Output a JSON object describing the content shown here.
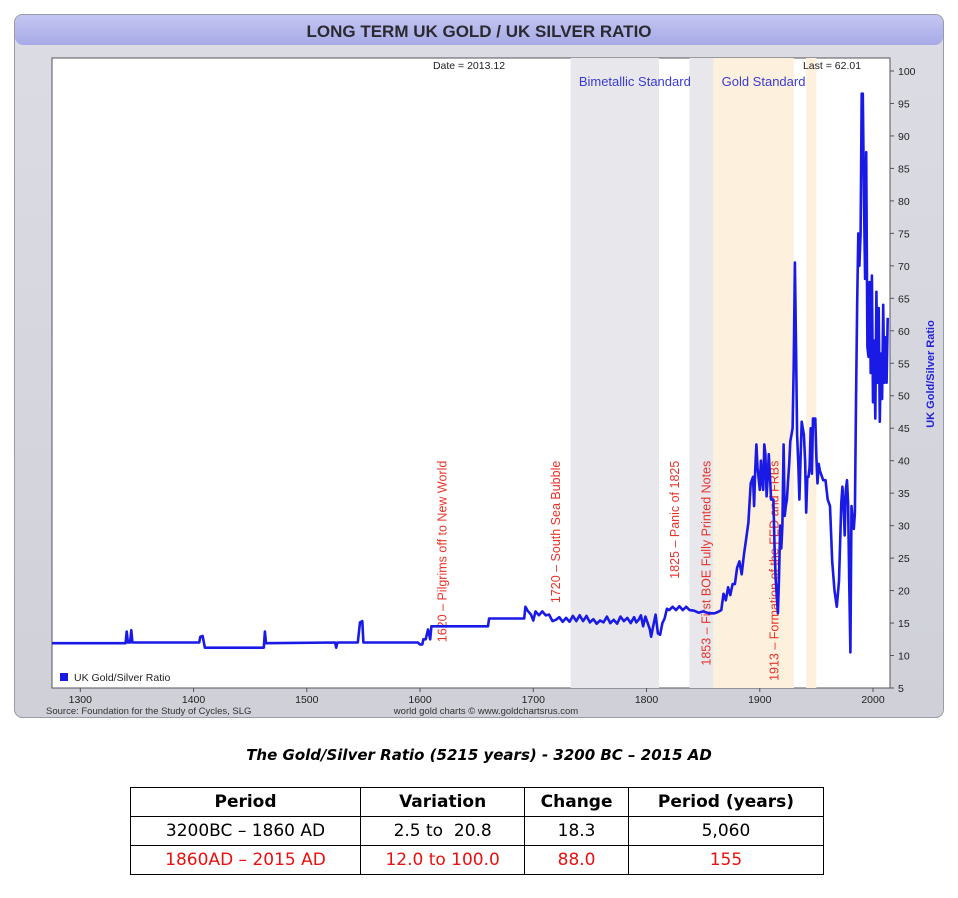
{
  "chart_data": {
    "type": "line",
    "title": "LONG TERM UK GOLD / UK SILVER RATIO",
    "date_label": "Date = 2013.12",
    "last_label": "Last = 62.01",
    "ylabel": "UK Gold/Silver Ratio",
    "xlabel": "",
    "xlim": [
      1275,
      2015
    ],
    "ylim": [
      5,
      102
    ],
    "x_ticks": [
      1300,
      1400,
      1500,
      1600,
      1700,
      1800,
      1900,
      2000
    ],
    "y_ticks": [
      5,
      10,
      15,
      20,
      25,
      30,
      35,
      40,
      45,
      50,
      55,
      60,
      65,
      70,
      75,
      80,
      85,
      90,
      95,
      100
    ],
    "grid": false,
    "legend_position": "bottom-left",
    "legend": [
      "UK Gold/Silver Ratio"
    ],
    "source": "Source: Foundation for the Study of Cycles, SLG",
    "credit": "world gold charts © www.goldchartsrus.com",
    "colors": {
      "line": "#1a1ae6",
      "annotation": "#e8332a",
      "region_label": "#3b3bd6",
      "bimetallic_band": "#e8e8ec",
      "gold_band": "#fdf0dc",
      "frame_top": "#b6b8ea",
      "frame": "#d6d6dc"
    },
    "bands": [
      {
        "label": "Bimetallic Standard",
        "from": 1733,
        "to": 1811,
        "fill": "#e8e8ec",
        "show_label": true
      },
      {
        "label": "",
        "from": 1838,
        "to": 1859,
        "fill": "#e8e8ec",
        "show_label": false
      },
      {
        "label": "Gold Standard",
        "from": 1859,
        "to": 1930,
        "fill": "#fdf0dc",
        "show_label": true
      },
      {
        "label": "",
        "from": 1941,
        "to": 1950,
        "fill": "#fdf0dc",
        "show_label": false
      }
    ],
    "annotations": [
      {
        "text": "1620 – Pilgrims off to New World",
        "x": 1620,
        "y": 40
      },
      {
        "text": "1720 – South Sea Bubble",
        "x": 1720,
        "y": 40
      },
      {
        "text": "1825 – Panic of 1825",
        "x": 1825,
        "y": 40
      },
      {
        "text": "1853 – First BOE Fully Printed Notes",
        "x": 1853,
        "y": 40
      },
      {
        "text": "1913 – Formation of the FED and FRBs",
        "x": 1913,
        "y": 40
      }
    ],
    "series": [
      {
        "name": "UK Gold/Silver Ratio",
        "points": [
          [
            1275,
            11.9
          ],
          [
            1340,
            11.9
          ],
          [
            1341,
            13.7
          ],
          [
            1342,
            12.0
          ],
          [
            1344,
            12.0
          ],
          [
            1345,
            13.9
          ],
          [
            1346,
            12.0
          ],
          [
            1405,
            12.0
          ],
          [
            1406,
            12.9
          ],
          [
            1408,
            13.0
          ],
          [
            1410,
            11.2
          ],
          [
            1462,
            11.2
          ],
          [
            1463,
            13.7
          ],
          [
            1464,
            11.9
          ],
          [
            1525,
            12.0
          ],
          [
            1526,
            11.2
          ],
          [
            1527,
            12.0
          ],
          [
            1545,
            12.0
          ],
          [
            1547,
            15.1
          ],
          [
            1549,
            15.3
          ],
          [
            1550,
            12.0
          ],
          [
            1598,
            12.0
          ],
          [
            1600,
            11.7
          ],
          [
            1602,
            11.7
          ],
          [
            1603,
            12.5
          ],
          [
            1605,
            12.5
          ],
          [
            1607,
            14.0
          ],
          [
            1609,
            12.5
          ],
          [
            1610,
            14.5
          ],
          [
            1615,
            14.5
          ],
          [
            1660,
            14.5
          ],
          [
            1661,
            15.7
          ],
          [
            1692,
            15.7
          ],
          [
            1693,
            17.5
          ],
          [
            1695,
            16.9
          ],
          [
            1698,
            16.3
          ],
          [
            1700,
            15.4
          ],
          [
            1702,
            16.8
          ],
          [
            1705,
            16.2
          ],
          [
            1708,
            16.8
          ],
          [
            1711,
            16.2
          ],
          [
            1714,
            16.3
          ],
          [
            1717,
            15.3
          ],
          [
            1720,
            15.5
          ],
          [
            1723,
            15.9
          ],
          [
            1726,
            15.2
          ],
          [
            1729,
            15.8
          ],
          [
            1732,
            15.2
          ],
          [
            1735,
            16.1
          ],
          [
            1738,
            15.3
          ],
          [
            1741,
            16.2
          ],
          [
            1744,
            15.3
          ],
          [
            1747,
            16.1
          ],
          [
            1750,
            15.1
          ],
          [
            1753,
            15.6
          ],
          [
            1756,
            14.9
          ],
          [
            1759,
            15.4
          ],
          [
            1762,
            15.1
          ],
          [
            1765,
            16.0
          ],
          [
            1768,
            15.0
          ],
          [
            1771,
            15.5
          ],
          [
            1774,
            14.9
          ],
          [
            1777,
            16.0
          ],
          [
            1780,
            15.3
          ],
          [
            1783,
            15.8
          ],
          [
            1786,
            15.0
          ],
          [
            1789,
            15.9
          ],
          [
            1791,
            15.1
          ],
          [
            1793,
            15.5
          ],
          [
            1795,
            16.2
          ],
          [
            1797,
            14.5
          ],
          [
            1799,
            16.0
          ],
          [
            1801,
            15.0
          ],
          [
            1803,
            14.0
          ],
          [
            1804,
            12.9
          ],
          [
            1806,
            14.6
          ],
          [
            1808,
            16.3
          ],
          [
            1810,
            13.4
          ],
          [
            1812,
            13.2
          ],
          [
            1814,
            15.0
          ],
          [
            1816,
            15.7
          ],
          [
            1818,
            17.2
          ],
          [
            1820,
            17.0
          ],
          [
            1823,
            17.5
          ],
          [
            1826,
            17.0
          ],
          [
            1829,
            17.6
          ],
          [
            1832,
            17.0
          ],
          [
            1835,
            17.5
          ],
          [
            1838,
            17.0
          ],
          [
            1842,
            16.9
          ],
          [
            1846,
            16.6
          ],
          [
            1850,
            16.8
          ],
          [
            1855,
            16.5
          ],
          [
            1860,
            16.5
          ],
          [
            1863,
            16.7
          ],
          [
            1866,
            17.0
          ],
          [
            1868,
            19.5
          ],
          [
            1870,
            18.5
          ],
          [
            1872,
            20.5
          ],
          [
            1874,
            19.3
          ],
          [
            1876,
            21.0
          ],
          [
            1878,
            21.0
          ],
          [
            1880,
            23.5
          ],
          [
            1882,
            24.5
          ],
          [
            1884,
            22.5
          ],
          [
            1886,
            25.5
          ],
          [
            1888,
            28.0
          ],
          [
            1890,
            30.5
          ],
          [
            1892,
            36.5
          ],
          [
            1894,
            37.5
          ],
          [
            1895,
            33.0
          ],
          [
            1896,
            38.5
          ],
          [
            1897,
            42.5
          ],
          [
            1898,
            39.0
          ],
          [
            1900,
            35.5
          ],
          [
            1901,
            40.0
          ],
          [
            1902,
            37.0
          ],
          [
            1903,
            35.5
          ],
          [
            1904,
            42.5
          ],
          [
            1905,
            41.0
          ],
          [
            1906,
            34.5
          ],
          [
            1907,
            37.5
          ],
          [
            1908,
            41.0
          ],
          [
            1909,
            37.5
          ],
          [
            1910,
            34.0
          ],
          [
            1912,
            34.0
          ],
          [
            1913,
            27.0
          ],
          [
            1914,
            22.0
          ],
          [
            1915,
            19.0
          ],
          [
            1916,
            16.5
          ],
          [
            1917,
            22.0
          ],
          [
            1918,
            30.0
          ],
          [
            1919,
            26.5
          ],
          [
            1920,
            30.0
          ],
          [
            1921,
            42.5
          ],
          [
            1922,
            31.5
          ],
          [
            1923,
            33.0
          ],
          [
            1924,
            34.0
          ],
          [
            1925,
            37.0
          ],
          [
            1926,
            39.5
          ],
          [
            1927,
            43.0
          ],
          [
            1928,
            44.0
          ],
          [
            1929,
            45.0
          ],
          [
            1930,
            54.5
          ],
          [
            1931,
            70.5
          ],
          [
            1932,
            58.0
          ],
          [
            1933,
            44.0
          ],
          [
            1934,
            39.5
          ],
          [
            1935,
            34.0
          ],
          [
            1936,
            40.0
          ],
          [
            1937,
            46.0
          ],
          [
            1938,
            45.0
          ],
          [
            1939,
            44.0
          ],
          [
            1940,
            40.0
          ],
          [
            1941,
            32.0
          ],
          [
            1942,
            37.5
          ],
          [
            1943,
            37.5
          ],
          [
            1944,
            39.0
          ],
          [
            1945,
            45.0
          ],
          [
            1946,
            38.0
          ],
          [
            1947,
            46.5
          ],
          [
            1949,
            46.5
          ],
          [
            1950,
            40.5
          ],
          [
            1951,
            36.5
          ],
          [
            1952,
            39.5
          ],
          [
            1953,
            38.5
          ],
          [
            1954,
            38.0
          ],
          [
            1956,
            37.0
          ],
          [
            1958,
            37.0
          ],
          [
            1960,
            34.0
          ],
          [
            1962,
            33.0
          ],
          [
            1964,
            24.5
          ],
          [
            1966,
            20.0
          ],
          [
            1968,
            17.5
          ],
          [
            1970,
            21.5
          ],
          [
            1972,
            33.5
          ],
          [
            1973,
            36.0
          ],
          [
            1974,
            33.0
          ],
          [
            1975,
            28.5
          ],
          [
            1976,
            35.5
          ],
          [
            1977,
            37.0
          ],
          [
            1978,
            33.5
          ],
          [
            1979,
            21.5
          ],
          [
            1980,
            10.5
          ],
          [
            1981,
            33.0
          ],
          [
            1982,
            31.0
          ],
          [
            1983,
            29.5
          ],
          [
            1984,
            32.0
          ],
          [
            1985,
            49.0
          ],
          [
            1986,
            64.5
          ],
          [
            1987,
            75.0
          ],
          [
            1988,
            70.0
          ],
          [
            1989,
            75.0
          ],
          [
            1990,
            96.5
          ],
          [
            1991,
            96.5
          ],
          [
            1992,
            80.0
          ],
          [
            1993,
            68.0
          ],
          [
            1994,
            87.5
          ],
          [
            1995,
            57.5
          ],
          [
            1996,
            56.0
          ],
          [
            1997,
            67.5
          ],
          [
            1998,
            53.5
          ],
          [
            1999,
            68.5
          ],
          [
            2000,
            49.0
          ],
          [
            2001,
            58.5
          ],
          [
            2002,
            46.5
          ],
          [
            2003,
            66.0
          ],
          [
            2004,
            52.0
          ],
          [
            2005,
            63.5
          ],
          [
            2006,
            46.0
          ],
          [
            2007,
            56.5
          ],
          [
            2008,
            49.5
          ],
          [
            2009,
            64.0
          ],
          [
            2010,
            52.0
          ],
          [
            2011,
            59.0
          ],
          [
            2012,
            52.0
          ],
          [
            2013,
            62.0
          ]
        ]
      }
    ]
  },
  "caption": "The Gold/Silver Ratio (5215 years) - 3200 BC – 2015 AD",
  "table": {
    "headers": [
      "Period",
      "Variation",
      "Change",
      "Period (years)"
    ],
    "rows": [
      [
        "3200BC – 1860 AD",
        "2.5 to  20.8",
        "18.3",
        "5,060"
      ],
      [
        "1860AD – 2015 AD",
        "12.0 to 100.0",
        "88.0",
        "155"
      ]
    ],
    "highlight_color": "#e81010"
  }
}
